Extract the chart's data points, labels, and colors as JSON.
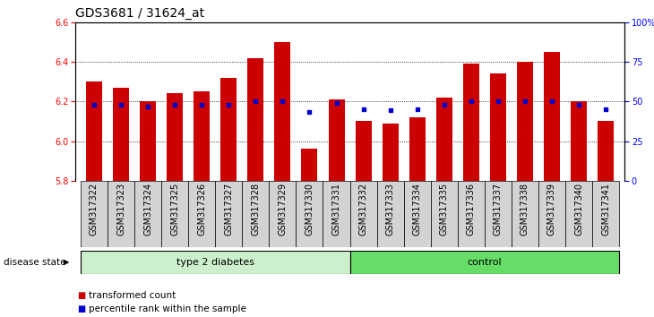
{
  "title": "GDS3681 / 31624_at",
  "samples": [
    "GSM317322",
    "GSM317323",
    "GSM317324",
    "GSM317325",
    "GSM317326",
    "GSM317327",
    "GSM317328",
    "GSM317329",
    "GSM317330",
    "GSM317331",
    "GSM317332",
    "GSM317333",
    "GSM317334",
    "GSM317335",
    "GSM317336",
    "GSM317337",
    "GSM317338",
    "GSM317339",
    "GSM317340",
    "GSM317341"
  ],
  "bar_values": [
    6.3,
    6.27,
    6.2,
    6.24,
    6.25,
    6.32,
    6.42,
    6.5,
    5.96,
    6.21,
    6.1,
    6.09,
    6.12,
    6.22,
    6.39,
    6.34,
    6.4,
    6.45,
    6.2,
    6.1
  ],
  "percentile_values": [
    6.185,
    6.185,
    6.175,
    6.185,
    6.185,
    6.185,
    6.2,
    6.2,
    6.145,
    6.19,
    6.16,
    6.155,
    6.16,
    6.185,
    6.2,
    6.2,
    6.2,
    6.2,
    6.185,
    6.16
  ],
  "ymin": 5.8,
  "ymax": 6.6,
  "yticks": [
    5.8,
    6.0,
    6.2,
    6.4,
    6.6
  ],
  "right_yticks": [
    0,
    25,
    50,
    75,
    100
  ],
  "right_yticklabels": [
    "0",
    "25",
    "50",
    "75",
    "100%"
  ],
  "bar_color": "#CC0000",
  "dot_color": "#0000CC",
  "bar_width": 0.6,
  "type2_diabetes_samples": 10,
  "control_samples": 10,
  "label_type2": "type 2 diabetes",
  "label_control": "control",
  "label_disease_state": "disease state",
  "legend_bar_label": "transformed count",
  "legend_dot_label": "percentile rank within the sample",
  "bg_color_plot": "#ffffff",
  "bg_color_xticklabels": "#d3d3d3",
  "bg_color_group_type2": "#ccf0cc",
  "bg_color_group_control": "#66dd66",
  "title_fontsize": 10,
  "tick_fontsize": 7,
  "label_fontsize": 7
}
